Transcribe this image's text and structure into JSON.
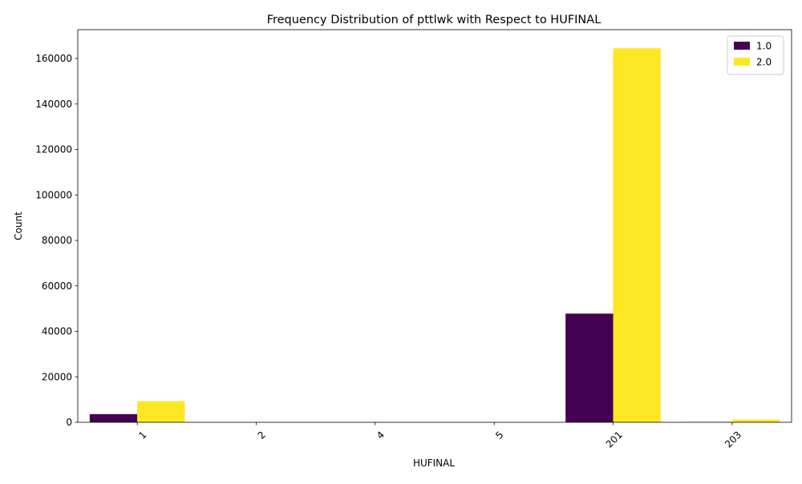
{
  "chart_data": {
    "type": "bar",
    "title": "Frequency Distribution of pttlwk with Respect to HUFINAL",
    "xlabel": "HUFINAL",
    "ylabel": "Count",
    "categories": [
      "1",
      "2",
      "4",
      "5",
      "201",
      "203"
    ],
    "series": [
      {
        "name": "1.0",
        "color": "#440154",
        "values": [
          3600,
          0,
          0,
          0,
          47800,
          100
        ]
      },
      {
        "name": "2.0",
        "color": "#fde725",
        "values": [
          9300,
          0,
          0,
          0,
          164500,
          1200
        ]
      }
    ],
    "ylim": [
      0,
      172700
    ],
    "yticks": [
      0,
      20000,
      40000,
      60000,
      80000,
      100000,
      120000,
      140000,
      160000
    ],
    "xtick_rotation": 45,
    "grid": false,
    "legend_position": "top-right",
    "palette": "viridis"
  }
}
